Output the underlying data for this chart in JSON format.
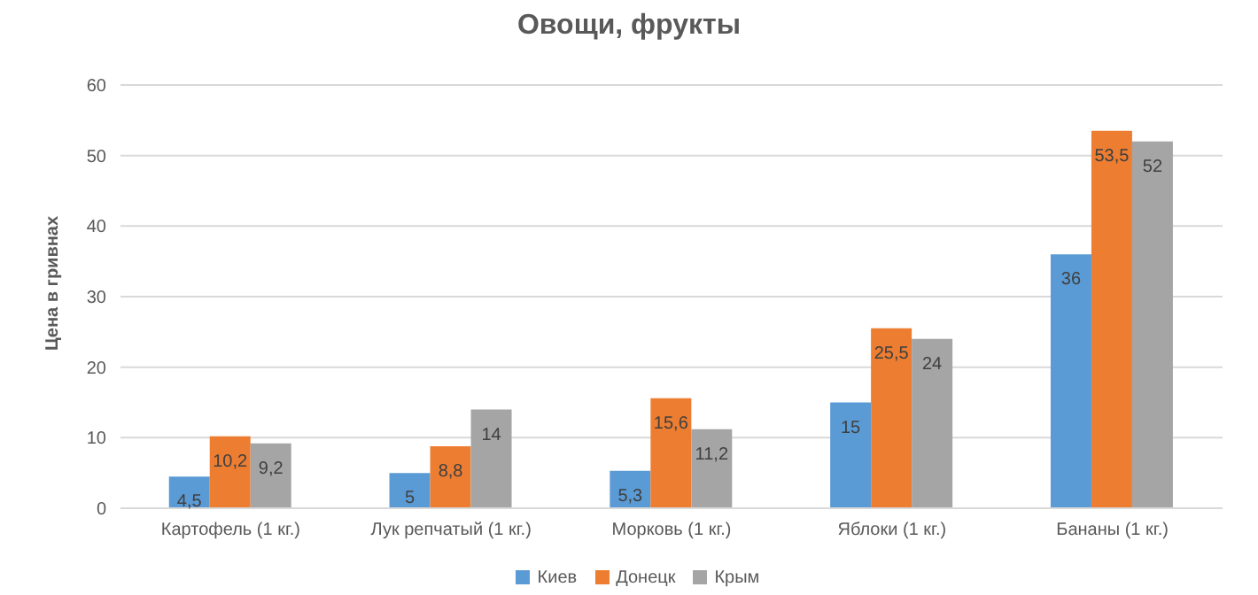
{
  "chart_data": {
    "type": "bar",
    "title": "Овощи, фрукты",
    "ylabel": "Цена в гривнах",
    "categories": [
      "Картофель (1 кг.)",
      "Лук репчатый (1 кг.)",
      "Морковь (1 кг.)",
      "Яблоки (1 кг.)",
      "Бананы (1 кг.)"
    ],
    "series": [
      {
        "name": "Киев",
        "color": "#5b9bd5",
        "values": [
          4.5,
          5,
          5.3,
          15,
          36
        ],
        "value_labels": [
          "4,5",
          "5",
          "5,3",
          "15",
          "36"
        ]
      },
      {
        "name": "Донецк",
        "color": "#ed7d31",
        "values": [
          10.2,
          8.8,
          15.6,
          25.5,
          53.5
        ],
        "value_labels": [
          "10,2",
          "8,8",
          "15,6",
          "25,5",
          "53,5"
        ]
      },
      {
        "name": "Крым",
        "color": "#a5a5a5",
        "values": [
          9.2,
          14,
          11.2,
          24,
          52
        ],
        "value_labels": [
          "9,2",
          "14",
          "11,2",
          "24",
          "52"
        ]
      }
    ],
    "ylim": [
      0,
      60
    ],
    "yticks": [
      0,
      10,
      20,
      30,
      40,
      50,
      60
    ],
    "grid": "y",
    "legend": "bottom"
  }
}
